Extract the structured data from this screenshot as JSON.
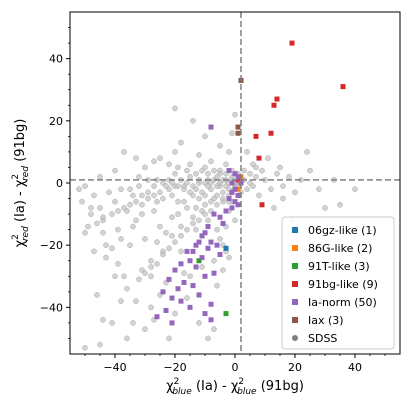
{
  "chart_data": {
    "type": "scatter",
    "title": "",
    "xlabel": {
      "main": "χ",
      "sup": "2",
      "sub": "blue",
      "rest": " (Ia) - ",
      "main2": "χ",
      "sup2": "2",
      "sub2": "blue",
      "rest2": " (91bg)"
    },
    "ylabel": {
      "main": "χ",
      "sup": "2",
      "sub": "red",
      "rest": " (Ia) - ",
      "main2": "χ",
      "sup2": "2",
      "sub2": "red",
      "rest2": " (91bg)"
    },
    "xlim": [
      -55,
      55
    ],
    "ylim": [
      -55,
      55
    ],
    "xticks": [
      -40,
      -20,
      0,
      20,
      40
    ],
    "yticks": [
      -40,
      -20,
      0,
      20,
      40
    ],
    "reference_lines": {
      "vertical_x": 2,
      "horizontal_y": 1
    },
    "legend_position": "lower-right",
    "series": [
      {
        "name": "06gz-like (1)",
        "color": "#1f77b4",
        "points": [
          [
            -3,
            -21
          ]
        ]
      },
      {
        "name": "86G-like (2)",
        "color": "#ff7f0e",
        "points": [
          [
            1,
            -2
          ],
          [
            2,
            2
          ]
        ]
      },
      {
        "name": "91T-like (3)",
        "color": "#2ca02c",
        "points": [
          [
            -12,
            -25
          ],
          [
            -12,
            -36
          ],
          [
            -3,
            -42
          ]
        ]
      },
      {
        "name": "91bg-like (9)",
        "color": "#d62728",
        "points": [
          [
            19,
            45
          ],
          [
            36,
            31
          ],
          [
            14,
            27
          ],
          [
            13,
            25
          ],
          [
            12,
            16
          ],
          [
            7,
            15
          ],
          [
            8,
            8
          ],
          [
            9,
            -7
          ],
          [
            1,
            1
          ]
        ]
      },
      {
        "name": "Ia-norm (50)",
        "color": "#9467bd",
        "points": [
          [
            -8,
            18
          ],
          [
            -2,
            4
          ],
          [
            0,
            3
          ],
          [
            1,
            2
          ],
          [
            2,
            0
          ],
          [
            -1,
            0
          ],
          [
            0,
            -2
          ],
          [
            -1,
            -3
          ],
          [
            1,
            -4
          ],
          [
            -2,
            -5
          ],
          [
            0,
            -6
          ],
          [
            -1,
            -8
          ],
          [
            -3,
            -9
          ],
          [
            1,
            -7
          ],
          [
            -7,
            -10
          ],
          [
            -5,
            -11
          ],
          [
            -9,
            -14
          ],
          [
            -4,
            -13
          ],
          [
            -10,
            -16
          ],
          [
            -11,
            -17
          ],
          [
            -8,
            -19
          ],
          [
            -12,
            -19
          ],
          [
            -13,
            -20
          ],
          [
            -6,
            -20
          ],
          [
            -9,
            -21
          ],
          [
            -14,
            -22
          ],
          [
            -16,
            -22
          ],
          [
            -5,
            -23
          ],
          [
            -11,
            -24
          ],
          [
            -15,
            -25
          ],
          [
            -18,
            -26
          ],
          [
            -13,
            -27
          ],
          [
            -20,
            -28
          ],
          [
            -7,
            -29
          ],
          [
            -10,
            -30
          ],
          [
            -22,
            -31
          ],
          [
            -17,
            -32
          ],
          [
            -14,
            -33
          ],
          [
            -19,
            -34
          ],
          [
            -24,
            -35
          ],
          [
            -12,
            -36
          ],
          [
            -21,
            -37
          ],
          [
            -18,
            -38
          ],
          [
            -8,
            -39
          ],
          [
            -15,
            -40
          ],
          [
            -23,
            -41
          ],
          [
            -10,
            -42
          ],
          [
            -26,
            -43
          ],
          [
            -21,
            -45
          ],
          [
            -8,
            -44
          ]
        ]
      },
      {
        "name": "Iax (3)",
        "color": "#8c564b",
        "points": [
          [
            2,
            33
          ],
          [
            1,
            18
          ],
          [
            1,
            16
          ]
        ]
      },
      {
        "name": "SDSS",
        "color": "#7f7f7f",
        "points": [
          [
            -50,
            -1
          ],
          [
            -47,
            -4
          ],
          [
            -45,
            -8
          ],
          [
            -44,
            -12
          ],
          [
            -42,
            -3
          ],
          [
            -40,
            -6
          ],
          [
            -39,
            -15
          ],
          [
            -38,
            -2
          ],
          [
            -36,
            -9
          ],
          [
            -35,
            -20
          ],
          [
            -34,
            -4
          ],
          [
            -33,
            -12
          ],
          [
            -32,
            2
          ],
          [
            -31,
            -7
          ],
          [
            -30,
            -18
          ],
          [
            -29,
            -3
          ],
          [
            -28,
            -25
          ],
          [
            -27,
            -9
          ],
          [
            -26,
            1
          ],
          [
            -25,
            -14
          ],
          [
            -24,
            -5
          ],
          [
            -23,
            -32
          ],
          [
            -22,
            -2
          ],
          [
            -21,
            -11
          ],
          [
            -20,
            3
          ],
          [
            -19,
            -6
          ],
          [
            -18,
            -22
          ],
          [
            -17,
            -1
          ],
          [
            -16,
            -8
          ],
          [
            -15,
            2
          ],
          [
            -14,
            -4
          ],
          [
            -13,
            -15
          ],
          [
            -12,
            0
          ],
          [
            -11,
            -3
          ],
          [
            -10,
            -7
          ],
          [
            -9,
            1
          ],
          [
            -8,
            -2
          ],
          [
            -7,
            -5
          ],
          [
            -6,
            2
          ],
          [
            -5,
            -1
          ],
          [
            -4,
            -3
          ],
          [
            -3,
            1
          ],
          [
            -2,
            -2
          ],
          [
            -1,
            2
          ],
          [
            0,
            -1
          ],
          [
            1,
            0
          ],
          [
            2,
            -3
          ],
          [
            3,
            1
          ],
          [
            4,
            -2
          ],
          [
            5,
            0
          ],
          [
            6,
            -1
          ],
          [
            7,
            2
          ],
          [
            8,
            -4
          ],
          [
            10,
            1
          ],
          [
            12,
            -2
          ],
          [
            14,
            3
          ],
          [
            16,
            -1
          ],
          [
            18,
            2
          ],
          [
            20,
            -3
          ],
          [
            22,
            1
          ],
          [
            25,
            4
          ],
          [
            28,
            -2
          ],
          [
            30,
            -8
          ],
          [
            33,
            1
          ],
          [
            -35,
            -2
          ],
          [
            -32,
            -1
          ],
          [
            -29,
            1
          ],
          [
            -27,
            -1
          ],
          [
            -24,
            0
          ],
          [
            -22,
            1
          ],
          [
            -20,
            -1
          ],
          [
            -18,
            1
          ],
          [
            -16,
            0
          ],
          [
            -14,
            -1
          ],
          [
            -12,
            1
          ],
          [
            -10,
            0
          ],
          [
            -9,
            -1
          ],
          [
            -8,
            0
          ],
          [
            -7,
            1
          ],
          [
            -6,
            -1
          ],
          [
            -5,
            0
          ],
          [
            -4,
            1
          ],
          [
            -3,
            -1
          ],
          [
            -2,
            0
          ],
          [
            -1,
            1
          ],
          [
            0,
            0
          ],
          [
            -15,
            6
          ],
          [
            -20,
            10
          ],
          [
            -10,
            5
          ],
          [
            -5,
            4
          ],
          [
            -8,
            7
          ],
          [
            -12,
            9
          ],
          [
            -18,
            13
          ],
          [
            -3,
            6
          ],
          [
            -25,
            8
          ],
          [
            -30,
            5
          ],
          [
            -40,
            4
          ],
          [
            -45,
            2
          ],
          [
            -52,
            -2
          ],
          [
            -48,
            -10
          ],
          [
            -43,
            -20
          ],
          [
            -37,
            -30
          ],
          [
            -41,
            -45
          ],
          [
            -36,
            -50
          ],
          [
            -45,
            -52
          ],
          [
            -50,
            -53
          ],
          [
            -30,
            -47
          ],
          [
            -28,
            -40
          ],
          [
            -25,
            -36
          ],
          [
            -33,
            -38
          ],
          [
            -31,
            -28
          ],
          [
            -26,
            -19
          ],
          [
            -23,
            -16
          ],
          [
            -19,
            -10
          ],
          [
            -17,
            -29
          ],
          [
            -15,
            -30
          ],
          [
            -11,
            -27
          ],
          [
            -7,
            -25
          ],
          [
            -5,
            -18
          ],
          [
            -3,
            -14
          ],
          [
            -2,
            -9
          ],
          [
            -1,
            -6
          ],
          [
            0,
            -12
          ],
          [
            -6,
            -33
          ],
          [
            -4,
            -28
          ],
          [
            -27,
            -44
          ],
          [
            -20,
            -42
          ],
          [
            -16,
            -37
          ],
          [
            -12,
            -45
          ],
          [
            -9,
            -50
          ],
          [
            -7,
            -47
          ],
          [
            -22,
            -50
          ],
          [
            -3,
            -22
          ],
          [
            -2,
            -24
          ],
          [
            -4,
            -20
          ],
          [
            -6,
            -15
          ],
          [
            -9,
            -12
          ],
          [
            -13,
            -8
          ],
          [
            -17,
            -6
          ],
          [
            -21,
            -4
          ],
          [
            -26,
            -6
          ],
          [
            -31,
            -10
          ],
          [
            -34,
            -14
          ],
          [
            -38,
            -18
          ],
          [
            -43,
            -24
          ],
          [
            -47,
            -22
          ],
          [
            -50,
            -16
          ],
          [
            -20,
            24
          ],
          [
            -10,
            15
          ],
          [
            -14,
            20
          ],
          [
            -5,
            12
          ],
          [
            -2,
            10
          ],
          [
            -1,
            16
          ],
          [
            0,
            22
          ],
          [
            4,
            10
          ],
          [
            6,
            6
          ],
          [
            9,
            4
          ],
          [
            11,
            8
          ],
          [
            15,
            5
          ],
          [
            24,
            10
          ],
          [
            16,
            -5
          ],
          [
            13,
            -8
          ],
          [
            19,
            -12
          ],
          [
            35,
            -7
          ],
          [
            40,
            -2
          ],
          [
            -38,
            -38
          ],
          [
            -40,
            -30
          ],
          [
            -46,
            -36
          ],
          [
            -34,
            -45
          ],
          [
            -44,
            -44
          ],
          [
            -28,
            -30
          ],
          [
            -24,
            -22
          ],
          [
            -21,
            -17
          ],
          [
            -18,
            -14
          ],
          [
            -14,
            -11
          ],
          [
            -11,
            -9
          ],
          [
            -8,
            -9
          ],
          [
            -6,
            -7
          ],
          [
            -4,
            -6
          ],
          [
            -2,
            -4
          ],
          [
            -1,
            -3
          ],
          [
            0,
            -2
          ],
          [
            1,
            -1
          ],
          [
            -13,
            -2
          ],
          [
            -15,
            -3
          ],
          [
            -17,
            -2
          ],
          [
            -19,
            -1
          ],
          [
            -21,
            0
          ],
          [
            -23,
            -1
          ],
          [
            -25,
            -3
          ],
          [
            -27,
            -4
          ],
          [
            -29,
            -5
          ],
          [
            -31,
            -4
          ],
          [
            -33,
            -6
          ],
          [
            -35,
            -7
          ],
          [
            -37,
            -8
          ],
          [
            -39,
            -9
          ],
          [
            -41,
            -10
          ],
          [
            -44,
            -11
          ],
          [
            -46,
            -13
          ],
          [
            -49,
            -14
          ],
          [
            -13,
            3
          ],
          [
            -11,
            4
          ],
          [
            -9,
            3
          ],
          [
            -7,
            4
          ],
          [
            -5,
            3
          ],
          [
            -3,
            3
          ],
          [
            -1,
            4
          ],
          [
            1,
            3
          ],
          [
            3,
            4
          ],
          [
            5,
            3
          ],
          [
            7,
            5
          ],
          [
            -16,
            4
          ],
          [
            -19,
            5
          ],
          [
            -22,
            6
          ],
          [
            -27,
            7
          ],
          [
            -33,
            8
          ],
          [
            -37,
            10
          ],
          [
            -12,
            -5
          ],
          [
            -10,
            -4
          ],
          [
            -6,
            -4
          ],
          [
            -4,
            -5
          ],
          [
            -2,
            -6
          ],
          [
            -8,
            -6
          ],
          [
            -10,
            -10
          ],
          [
            -12,
            -12
          ],
          [
            -14,
            -13
          ],
          [
            -16,
            -15
          ],
          [
            -18,
            -17
          ],
          [
            -20,
            -19
          ],
          [
            -22,
            -21
          ],
          [
            -24,
            -23
          ],
          [
            -26,
            -26
          ],
          [
            -28,
            -27
          ],
          [
            -30,
            -29
          ],
          [
            -32,
            -31
          ],
          [
            -36,
            -34
          ],
          [
            -39,
            -26
          ],
          [
            -41,
            -21
          ],
          [
            -44,
            -16
          ],
          [
            -48,
            -8
          ],
          [
            -51,
            -6
          ]
        ]
      }
    ]
  }
}
